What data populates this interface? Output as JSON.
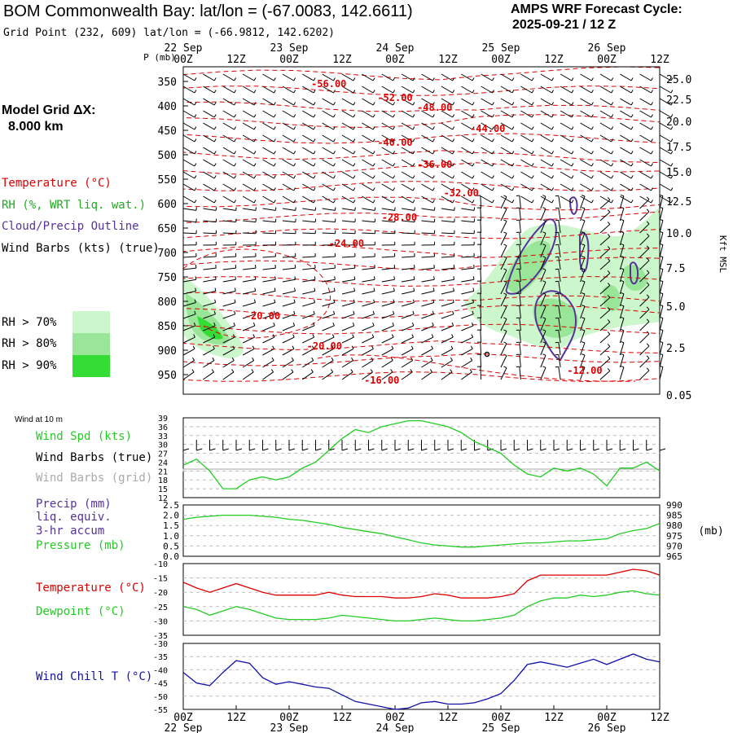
{
  "header": {
    "title": "BOM Commonwealth Bay:  lat/lon = (-67.0083, 142.6611)",
    "cycle_label": "AMPS WRF Forecast Cycle:",
    "cycle_value": "2025-09-21 / 12  Z",
    "grid_point": "Grid Point (232, 609) lat/lon = (-66.9812, 142.6202)"
  },
  "left_panel": {
    "model_grid_label": "Model Grid ΔX:",
    "model_grid_value": "8.000 km",
    "temperature_label": "Temperature (°C)",
    "rh_label": "RH (%, WRT liq. wat.)",
    "cloud_label": "Cloud/Precip Outline",
    "wind_label": "Wind Barbs (kts) (true)",
    "rh_legend": [
      {
        "label": "RH > 70%",
        "color": "#ccf7cc"
      },
      {
        "label": "RH > 80%",
        "color": "#99e699"
      },
      {
        "label": "RH > 90%",
        "color": "#33dd33"
      }
    ]
  },
  "colors": {
    "temperature": "#dd0000",
    "rh": "#22aa22",
    "cloud": "#553399",
    "wind_speed": "#22cc22",
    "wind_grid": "#aaaaaa",
    "dewpoint": "#22cc22",
    "windchill": "#1111aa"
  },
  "time_axis": {
    "ticks": [
      "00Z",
      "12Z",
      "00Z",
      "12Z",
      "00Z",
      "12Z",
      "00Z",
      "12Z",
      "00Z",
      "12Z"
    ],
    "dates": [
      "22 Sep",
      "23 Sep",
      "24 Sep",
      "25 Sep",
      "26 Sep"
    ],
    "p_label": "P (mb)"
  },
  "chart_data": [
    {
      "type": "contour",
      "name": "time-height cross section",
      "y_axis_label": "P (mb)",
      "pressure_ticks": [
        350,
        400,
        450,
        500,
        550,
        600,
        650,
        700,
        750,
        800,
        850,
        900,
        950
      ],
      "right_axis_label": "Kft MSL",
      "height_ticks": [
        "25.0",
        "22.5",
        "20.0",
        "17.5",
        "15.0",
        "12.5",
        "10.0",
        "7.5",
        "5.0",
        "2.5",
        "0.05"
      ],
      "temperature_labels": [
        {
          "text": "-56.00",
          "hour": 33,
          "p": 355
        },
        {
          "text": "-52.00",
          "hour": 48,
          "p": 383
        },
        {
          "text": "-48.00",
          "hour": 57,
          "p": 403
        },
        {
          "text": "-44.00",
          "hour": 69,
          "p": 447
        },
        {
          "text": "-40.00",
          "hour": 48,
          "p": 475
        },
        {
          "text": "-36.00",
          "hour": 57,
          "p": 520
        },
        {
          "text": "-32.00",
          "hour": 63,
          "p": 578
        },
        {
          "text": "-28.00",
          "hour": 49,
          "p": 628
        },
        {
          "text": "-24.00",
          "hour": 37,
          "p": 682
        },
        {
          "text": "-20.00",
          "hour": 18,
          "p": 830
        },
        {
          "text": "-20.00",
          "hour": 32,
          "p": 892
        },
        {
          "text": "-16.00",
          "hour": 45,
          "p": 962
        },
        {
          "text": "-12.00",
          "hour": 91,
          "p": 942
        }
      ]
    },
    {
      "type": "line",
      "name": "Wind Spd (kts)",
      "header": "Wind at 10 m",
      "labels": [
        "Wind Spd (kts)",
        "Wind Barbs (true)",
        "Wind Barbs (grid)"
      ],
      "y_ticks": [
        12,
        15,
        18,
        21,
        24,
        27,
        30,
        33,
        36,
        39
      ],
      "ylim": [
        12,
        39
      ],
      "x": [
        0,
        3,
        6,
        9,
        12,
        15,
        18,
        21,
        24,
        27,
        30,
        33,
        36,
        39,
        42,
        45,
        48,
        51,
        54,
        57,
        60,
        63,
        66,
        69,
        72,
        75,
        78,
        81,
        84,
        87,
        90,
        93,
        96,
        99,
        102,
        105,
        108
      ],
      "values": [
        23,
        25,
        21,
        15,
        15,
        18,
        19,
        18,
        19,
        22,
        24,
        28,
        32,
        35,
        34,
        36,
        37,
        38,
        38,
        37,
        36,
        34,
        31,
        29,
        27,
        23,
        20,
        19,
        22,
        21,
        22,
        20,
        16,
        22,
        22,
        24,
        21
      ]
    },
    {
      "type": "line",
      "name": "Pressure (mb)",
      "labels": [
        "Precip (mm)",
        "liq. equiv.",
        "3-hr accum",
        "Pressure (mb)"
      ],
      "left_ticks": [
        "0.0",
        "0.5",
        "1.0",
        "1.5",
        "2.0",
        "2.5"
      ],
      "right_ticks": [
        965,
        970,
        975,
        980,
        985,
        990
      ],
      "right_unit": "(mb)",
      "ylim": [
        965,
        990
      ],
      "x": [
        0,
        3,
        6,
        9,
        12,
        15,
        18,
        21,
        24,
        27,
        30,
        33,
        36,
        39,
        42,
        45,
        48,
        51,
        54,
        57,
        60,
        63,
        66,
        69,
        72,
        75,
        78,
        81,
        84,
        87,
        90,
        93,
        96,
        99,
        102,
        105,
        108
      ],
      "values": [
        983,
        984,
        984.5,
        985,
        985,
        985,
        984.5,
        984,
        983,
        982.5,
        981.5,
        980.5,
        979,
        978,
        977,
        976,
        974.5,
        973,
        971.5,
        970.5,
        970,
        969.5,
        969.5,
        970,
        970.5,
        971,
        971.5,
        971.5,
        972,
        972.5,
        972.5,
        973,
        973.5,
        976,
        977.5,
        978.5,
        981
      ]
    },
    {
      "type": "line",
      "name": "Temperature / Dewpoint",
      "labels": [
        "Temperature (°C)",
        "Dewpoint (°C)"
      ],
      "y_ticks": [
        -35,
        -30,
        -25,
        -20,
        -15,
        -10
      ],
      "ylim": [
        -35,
        -10
      ],
      "x": [
        0,
        3,
        6,
        9,
        12,
        15,
        18,
        21,
        24,
        27,
        30,
        33,
        36,
        39,
        42,
        45,
        48,
        51,
        54,
        57,
        60,
        63,
        66,
        69,
        72,
        75,
        78,
        81,
        84,
        87,
        90,
        93,
        96,
        99,
        102,
        105,
        108
      ],
      "series": [
        {
          "name": "Temperature (°C)",
          "values": [
            -16.5,
            -18.5,
            -20,
            -18.5,
            -17,
            -18.5,
            -20,
            -21,
            -21,
            -21,
            -21,
            -20,
            -21,
            -21.5,
            -21.5,
            -21.5,
            -22,
            -22,
            -21.5,
            -20.5,
            -21,
            -22,
            -22,
            -22,
            -21.5,
            -20.5,
            -16,
            -14,
            -14,
            -14,
            -14,
            -14,
            -14,
            -13,
            -12,
            -12.5,
            -14
          ]
        },
        {
          "name": "Dewpoint (°C)",
          "values": [
            -25,
            -26,
            -28,
            -26.5,
            -25,
            -26,
            -27.5,
            -29,
            -29.5,
            -29.5,
            -29.5,
            -29,
            -28,
            -28.5,
            -29,
            -29.5,
            -30,
            -30,
            -29.5,
            -29,
            -29.5,
            -30,
            -30,
            -29.5,
            -29,
            -28,
            -25,
            -23,
            -22,
            -22,
            -21,
            -21.5,
            -21,
            -20,
            -19.5,
            -20.5,
            -21
          ]
        }
      ]
    },
    {
      "type": "line",
      "name": "Wind Chill T (°C)",
      "labels": [
        "Wind Chill T (°C)"
      ],
      "y_ticks": [
        -55,
        -50,
        -45,
        -40,
        -35,
        -30
      ],
      "ylim": [
        -55,
        -30
      ],
      "x": [
        0,
        3,
        6,
        9,
        12,
        15,
        18,
        21,
        24,
        27,
        30,
        33,
        36,
        39,
        42,
        45,
        48,
        51,
        54,
        57,
        60,
        63,
        66,
        69,
        72,
        75,
        78,
        81,
        84,
        87,
        90,
        93,
        96,
        99,
        102,
        105,
        108
      ],
      "values": [
        -41,
        -45,
        -46,
        -41,
        -36.5,
        -37.5,
        -43,
        -45.5,
        -44.5,
        -45.5,
        -46.5,
        -47,
        -49.5,
        -52,
        -53,
        -54,
        -55,
        -54.5,
        -52.5,
        -52,
        -53,
        -53,
        -52.5,
        -51,
        -49,
        -44,
        -38,
        -37,
        -38,
        -39,
        -37.5,
        -36,
        -38,
        -36,
        -34,
        -36,
        -37
      ]
    }
  ]
}
